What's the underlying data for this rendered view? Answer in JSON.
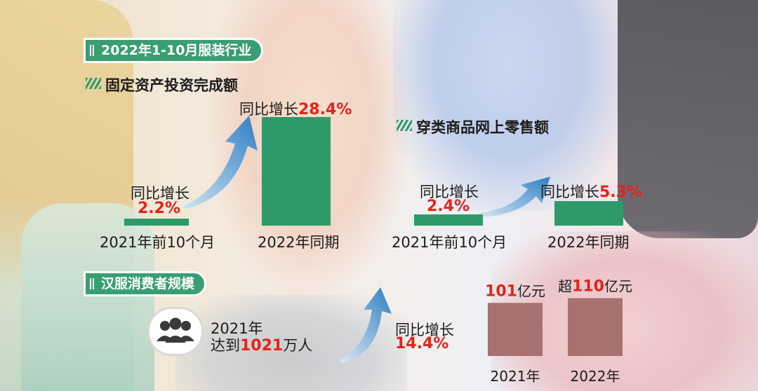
{
  "header": {
    "main_tag": "2022年1-10月服装行业",
    "section_investment": "固定资产投资完成额",
    "section_online": "穿类商品网上零售额",
    "section_hanfu": "汉服消费者规模"
  },
  "chart_data": [
    {
      "type": "bar",
      "title": "固定资产投资完成额",
      "categories": [
        "2021年前10个月",
        "2022年同期"
      ],
      "growth_labels": [
        "同比增长",
        "同比增长"
      ],
      "growth_values": [
        "2.2%",
        "28.4%"
      ],
      "growth_numeric": [
        2.2,
        28.4
      ],
      "colors": [
        "#2e9a6a",
        "#2e9a6a"
      ]
    },
    {
      "type": "bar",
      "title": "穿类商品网上零售额",
      "categories": [
        "2021年前10个月",
        "2022年同期"
      ],
      "growth_labels": [
        "同比增长",
        "同比增长"
      ],
      "growth_values": [
        "2.4%",
        "5.3%"
      ],
      "growth_numeric": [
        2.4,
        5.3
      ],
      "colors": [
        "#2e9a6a",
        "#2e9a6a"
      ]
    },
    {
      "type": "bar",
      "title": "汉服消费者规模",
      "categories": [
        "2021年",
        "2022年"
      ],
      "prefix": [
        "",
        "超"
      ],
      "values": [
        101,
        110
      ],
      "value_text": [
        "101",
        "110"
      ],
      "unit": "亿元",
      "colors": [
        "#a7716f",
        "#a7716f"
      ]
    }
  ],
  "hanfu": {
    "year": "2021年",
    "reach_prefix": "达到",
    "reach_value": "1021",
    "reach_unit": "万人",
    "growth_label": "同比增长",
    "growth_value": "14.4%",
    "icon": "people-group-icon"
  }
}
